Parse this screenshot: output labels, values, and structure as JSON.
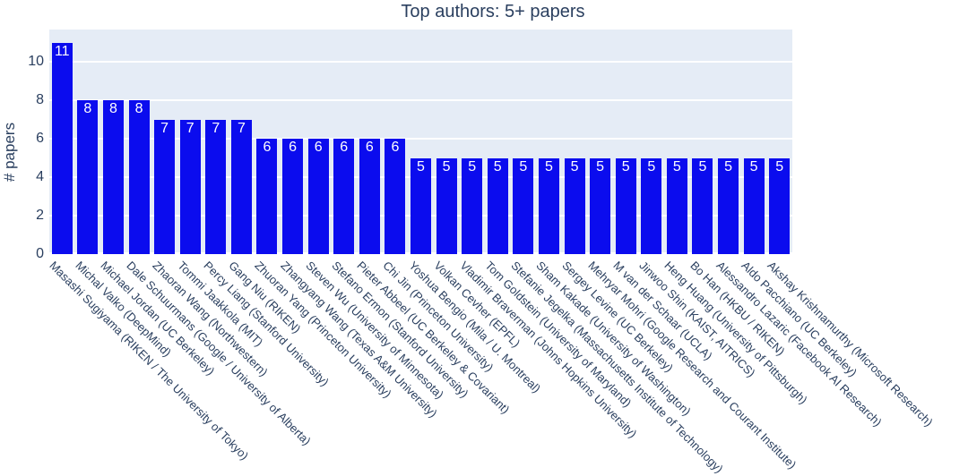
{
  "chart_data": {
    "type": "bar",
    "title": "Top authors: 5+ papers",
    "xlabel": "",
    "ylabel": "# papers",
    "categories": [
      "Masashi Sugiyama (RIKEN / The University of Tokyo)",
      "Michal Valko (DeepMind)",
      "Michael Jordan (UC Berkeley)",
      "Dale Schuurmans (Google / University of Alberta)",
      "Zhaoran Wang (Northwestern)",
      "Tommi Jaakkola (MIT)",
      "Percy Liang (Stanford University)",
      "Gang Niu (RIKEN)",
      "Zhuoran Yang (Princeton University)",
      "Zhangyang Wang (Texas A&M University)",
      "Steven Wu (University of Minnesota)",
      "Stefano Ermon (Stanford University)",
      "Pieter Abbeel (UC Berkeley & Covariant)",
      "Chi Jin (Princeton University)",
      "Yoshua Bengio (Mila / U. Montreal)",
      "Volkan Cevher (EPFL)",
      "Vladimir Braverman (Johns Hopkins University)",
      "Tom Goldstein (University of Maryland)",
      "Stefanie Jegelka (Massachusetts Institute of Technology)",
      "Sham Kakade (University of Washington)",
      "Sergey Levine (UC Berkeley)",
      "Mehryar Mohri (Google Research and Courant Institute)",
      "M van der Schaar (UCLA)",
      "Jinwoo Shin (KAIST, AITRICS)",
      "Heng Huang (University of Pittsburgh)",
      "Bo Han (HKBU / RIKEN)",
      "Alessandro Lazaric (Facebook AI Research)",
      "Aldo Pacchiano (UC Berkeley)",
      "Akshay Krishnamurthy (Microsoft Research)"
    ],
    "values": [
      11,
      8,
      8,
      8,
      7,
      7,
      7,
      7,
      6,
      6,
      6,
      6,
      6,
      6,
      5,
      5,
      5,
      5,
      5,
      5,
      5,
      5,
      5,
      5,
      5,
      5,
      5,
      5,
      5
    ],
    "bar_value_labels": [
      "11",
      "8",
      "8",
      "8",
      "7",
      "7",
      "7",
      "7",
      "6",
      "6",
      "6",
      "6",
      "6",
      "6",
      "5",
      "5",
      "5",
      "5",
      "5",
      "5",
      "5",
      "5",
      "5",
      "5",
      "5",
      "5",
      "5",
      "5",
      "5"
    ],
    "yticks": [
      0,
      2,
      4,
      6,
      8,
      10
    ],
    "ylim": [
      0,
      11.65
    ],
    "grid": true,
    "legend_position": "none",
    "x_tick_angle_deg": 45,
    "bar_label_position": "inside-top",
    "colors": {
      "bar": "#0b0cee",
      "plot_background": "#e5ecf6",
      "gridline": "#ffffff",
      "text": "#2a3f5f",
      "bar_label_text": "#ffffff",
      "page_background": "#ffffff"
    }
  }
}
